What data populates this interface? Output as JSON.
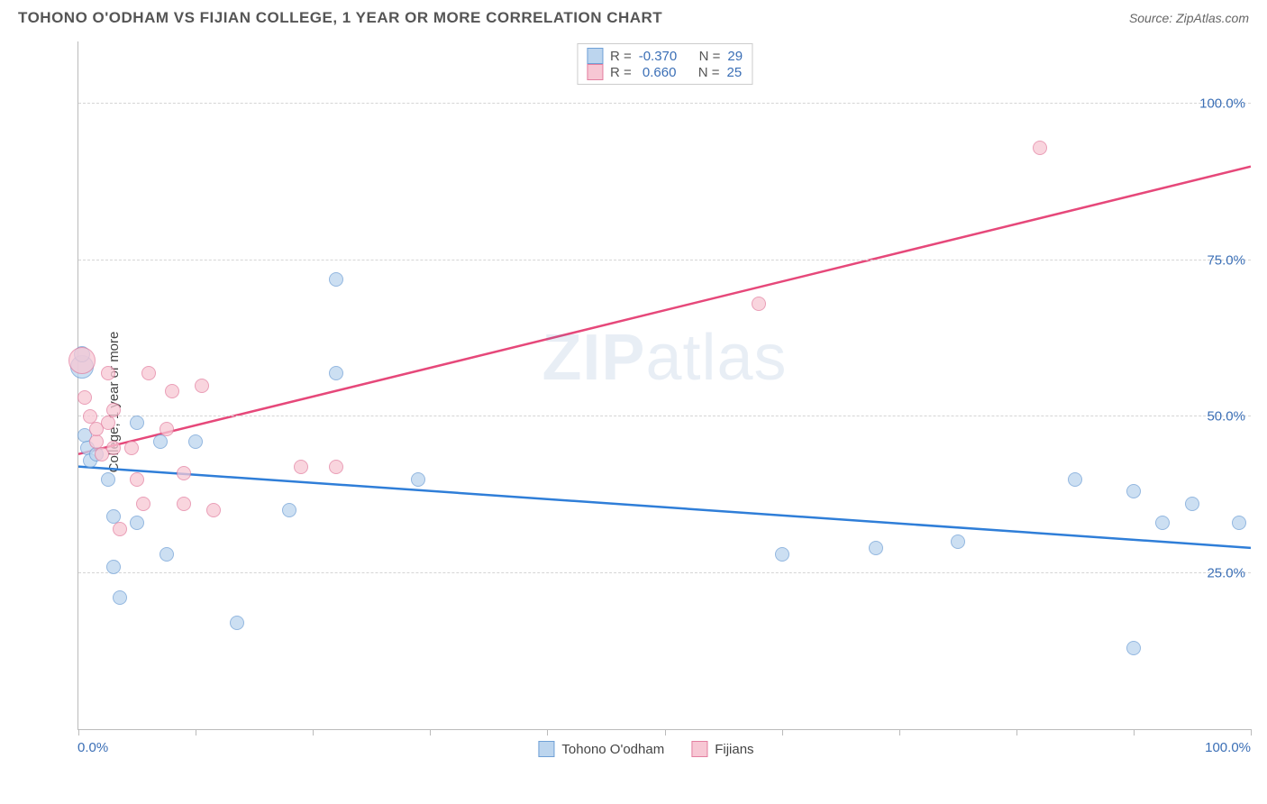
{
  "header": {
    "title": "TOHONO O'ODHAM VS FIJIAN COLLEGE, 1 YEAR OR MORE CORRELATION CHART",
    "source": "Source: ZipAtlas.com"
  },
  "chart": {
    "type": "scatter",
    "y_label": "College, 1 year or more",
    "background_color": "#ffffff",
    "grid_color": "#d5d5d5",
    "axis_color": "#bbbbbb",
    "xlim": [
      0,
      100
    ],
    "ylim": [
      0,
      110
    ],
    "x_ticks": [
      0,
      10,
      20,
      30,
      40,
      50,
      60,
      70,
      80,
      90,
      100
    ],
    "x_tick_labels": {
      "0": "0.0%",
      "100": "100.0%"
    },
    "y_gridlines": [
      25,
      50,
      75,
      100
    ],
    "y_tick_labels": {
      "25": "25.0%",
      "50": "50.0%",
      "75": "75.0%",
      "100": "100.0%"
    },
    "tick_label_color": "#3b6fb6",
    "tick_label_fontsize": 15,
    "watermark": "ZIPatlas",
    "series": [
      {
        "name": "Tohono O'odham",
        "marker_fill": "#bcd5ee",
        "marker_stroke": "#6fa0d6",
        "marker_fill_opacity": 0.75,
        "trend_color": "#2f7ed8",
        "trend_width": 2.5,
        "trend": {
          "y_at_x0": 42,
          "y_at_x100": 29
        },
        "stats": {
          "R": "-0.370",
          "N": "29"
        },
        "points": [
          {
            "x": 0.3,
            "y": 58,
            "r": 13
          },
          {
            "x": 0.3,
            "y": 60,
            "r": 9
          },
          {
            "x": 0.5,
            "y": 47,
            "r": 8
          },
          {
            "x": 0.8,
            "y": 45,
            "r": 8
          },
          {
            "x": 1.0,
            "y": 43,
            "r": 8
          },
          {
            "x": 1.5,
            "y": 44,
            "r": 8
          },
          {
            "x": 2.5,
            "y": 40,
            "r": 8
          },
          {
            "x": 3.0,
            "y": 34,
            "r": 8
          },
          {
            "x": 3.0,
            "y": 26,
            "r": 8
          },
          {
            "x": 3.5,
            "y": 21,
            "r": 8
          },
          {
            "x": 5.0,
            "y": 49,
            "r": 8
          },
          {
            "x": 5.0,
            "y": 33,
            "r": 8
          },
          {
            "x": 7.0,
            "y": 46,
            "r": 8
          },
          {
            "x": 7.5,
            "y": 28,
            "r": 8
          },
          {
            "x": 10.0,
            "y": 46,
            "r": 8
          },
          {
            "x": 13.5,
            "y": 17,
            "r": 8
          },
          {
            "x": 18.0,
            "y": 35,
            "r": 8
          },
          {
            "x": 22.0,
            "y": 72,
            "r": 8
          },
          {
            "x": 22.0,
            "y": 57,
            "r": 8
          },
          {
            "x": 29.0,
            "y": 40,
            "r": 8
          },
          {
            "x": 60.0,
            "y": 28,
            "r": 8
          },
          {
            "x": 68.0,
            "y": 29,
            "r": 8
          },
          {
            "x": 75.0,
            "y": 30,
            "r": 8
          },
          {
            "x": 85.0,
            "y": 40,
            "r": 8
          },
          {
            "x": 90.0,
            "y": 38,
            "r": 8
          },
          {
            "x": 90.0,
            "y": 13,
            "r": 8
          },
          {
            "x": 92.5,
            "y": 33,
            "r": 8
          },
          {
            "x": 95.0,
            "y": 36,
            "r": 8
          },
          {
            "x": 99.0,
            "y": 33,
            "r": 8
          }
        ]
      },
      {
        "name": "Fijians",
        "marker_fill": "#f7c7d4",
        "marker_stroke": "#e37fa0",
        "marker_fill_opacity": 0.75,
        "trend_color": "#e6487a",
        "trend_width": 2.5,
        "trend": {
          "y_at_x0": 44,
          "y_at_x100": 90
        },
        "stats": {
          "R": "0.660",
          "N": "25"
        },
        "points": [
          {
            "x": 0.3,
            "y": 59,
            "r": 15
          },
          {
            "x": 0.5,
            "y": 53,
            "r": 8
          },
          {
            "x": 1.0,
            "y": 50,
            "r": 8
          },
          {
            "x": 1.5,
            "y": 46,
            "r": 8
          },
          {
            "x": 1.5,
            "y": 48,
            "r": 8
          },
          {
            "x": 2.0,
            "y": 44,
            "r": 8
          },
          {
            "x": 2.5,
            "y": 57,
            "r": 8
          },
          {
            "x": 2.5,
            "y": 49,
            "r": 8
          },
          {
            "x": 3.0,
            "y": 45,
            "r": 8
          },
          {
            "x": 3.0,
            "y": 51,
            "r": 8
          },
          {
            "x": 3.5,
            "y": 32,
            "r": 8
          },
          {
            "x": 4.5,
            "y": 45,
            "r": 8
          },
          {
            "x": 5.0,
            "y": 40,
            "r": 8
          },
          {
            "x": 5.5,
            "y": 36,
            "r": 8
          },
          {
            "x": 6.0,
            "y": 57,
            "r": 8
          },
          {
            "x": 7.5,
            "y": 48,
            "r": 8
          },
          {
            "x": 8.0,
            "y": 54,
            "r": 8
          },
          {
            "x": 9.0,
            "y": 36,
            "r": 8
          },
          {
            "x": 9.0,
            "y": 41,
            "r": 8
          },
          {
            "x": 10.5,
            "y": 55,
            "r": 8
          },
          {
            "x": 11.5,
            "y": 35,
            "r": 8
          },
          {
            "x": 19.0,
            "y": 42,
            "r": 8
          },
          {
            "x": 22.0,
            "y": 42,
            "r": 8
          },
          {
            "x": 58.0,
            "y": 68,
            "r": 8
          },
          {
            "x": 82.0,
            "y": 93,
            "r": 8
          }
        ]
      }
    ],
    "legend_top_labels": {
      "R": "R =",
      "N": "N ="
    },
    "legend_bottom": [
      "Tohono O'odham",
      "Fijians"
    ]
  }
}
